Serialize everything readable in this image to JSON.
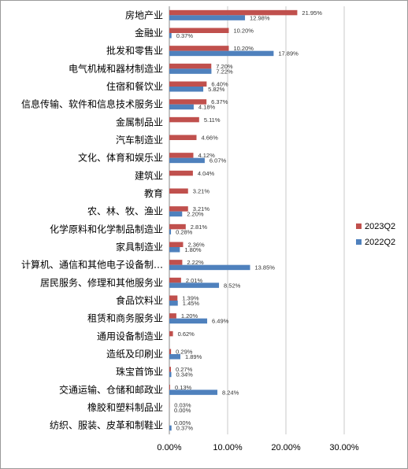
{
  "chart_data": {
    "type": "bar",
    "orientation": "horizontal",
    "categories": [
      "房地产业",
      "金融业",
      "批发和零售业",
      "电气机械和器材制造业",
      "住宿和餐饮业",
      "信息传输、软件和信息技术服务业",
      "金属制品业",
      "汽车制造业",
      "文化、体育和娱乐业",
      "建筑业",
      "教育",
      "农、林、牧、渔业",
      "化学原料和化学制品制造业",
      "家具制造业",
      "计算机、通信和其他电子设备制…",
      "居民服务、修理和其他服务业",
      "食品饮料业",
      "租赁和商务服务业",
      "通用设备制造业",
      "造纸及印刷业",
      "珠宝首饰业",
      "交通运输、仓储和邮政业",
      "橡胶和塑料制品业",
      "纺织、服装、皮革和制鞋业"
    ],
    "series": [
      {
        "name": "2023Q2",
        "color": "#c0504d",
        "values": [
          21.95,
          10.2,
          10.2,
          7.2,
          6.4,
          6.37,
          5.11,
          4.66,
          4.12,
          4.04,
          3.21,
          3.21,
          2.81,
          2.36,
          2.22,
          2.01,
          1.39,
          1.2,
          0.62,
          0.29,
          0.27,
          0.13,
          0.03,
          0.0
        ],
        "labels": [
          "21.95%",
          "10.20%",
          "10.20%",
          "7.20%",
          "6.40%",
          "6.37%",
          "5.11%",
          "4.66%",
          "4.12%",
          "4.04%",
          "3.21%",
          "3.21%",
          "2.81%",
          "2.36%",
          "2.22%",
          "2.01%",
          "1.39%",
          "1.20%",
          "0.62%",
          "0.29%",
          "0.27%",
          "0.13%",
          "0.03%",
          "0.00%"
        ]
      },
      {
        "name": "2022Q2",
        "color": "#4f81bd",
        "values": [
          12.98,
          0.37,
          17.89,
          7.22,
          5.82,
          4.18,
          null,
          null,
          6.07,
          null,
          null,
          2.2,
          0.28,
          1.8,
          13.85,
          8.52,
          1.45,
          6.49,
          null,
          1.89,
          0.34,
          8.24,
          0.0,
          0.37
        ],
        "labels": [
          "12.98%",
          "0.37%",
          "17.89%",
          "7.22%",
          "5.82%",
          "4.18%",
          "",
          "",
          "6.07%",
          "",
          "",
          "2.20%",
          "0.28%",
          "1.80%",
          "13.85%",
          "8.52%",
          "1.45%",
          "6.49%",
          "",
          "1.89%",
          "0.34%",
          "8.24%",
          "0.00%",
          "0.37%"
        ]
      }
    ],
    "xaxis": {
      "min": 0,
      "max": 30,
      "ticks": [
        0,
        10,
        20,
        30
      ],
      "tick_labels": [
        "0.00%",
        "10.00%",
        "20.00%",
        "30.00%"
      ]
    },
    "grid": "vertical",
    "legend_position": "right"
  }
}
